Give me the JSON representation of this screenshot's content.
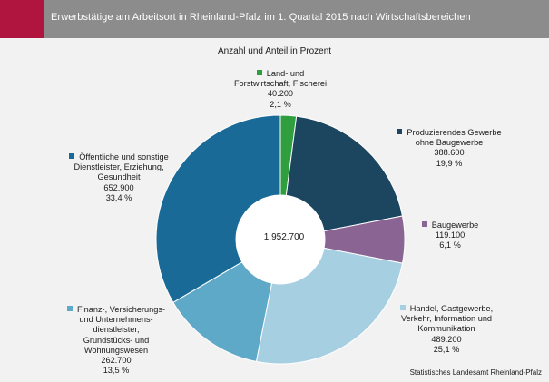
{
  "header": {
    "title": "Erwerbstätige am Arbeitsort in Rheinland-Pfalz im 1. Quartal 2015 nach Wirtschaftsbereichen"
  },
  "subtitle": "Anzahl und Anteil in Prozent",
  "total": "1.952.700",
  "source": "Statistisches Landesamt Rheinland-Pfalz",
  "colors": {
    "header": "#8c8c8c",
    "accent": "#b0153f",
    "background": "#f2f2f2"
  },
  "chart_data": {
    "type": "pie",
    "variant": "donut",
    "total": 1952700,
    "slices": [
      {
        "label_lines": [
          "Land- und",
          "Forstwirtschaft, Fischerei"
        ],
        "value": 40200,
        "value_text": "40.200",
        "percent": 2.1,
        "percent_text": "2,1 %",
        "color": "#2e9e3f"
      },
      {
        "label_lines": [
          "Produzierendes Gewerbe",
          "ohne Baugewerbe"
        ],
        "value": 388600,
        "value_text": "388.600",
        "percent": 19.9,
        "percent_text": "19,9 %",
        "color": "#1c4560"
      },
      {
        "label_lines": [
          "Baugewerbe"
        ],
        "value": 119100,
        "value_text": "119.100",
        "percent": 6.1,
        "percent_text": "6,1 %",
        "color": "#8a6493"
      },
      {
        "label_lines": [
          "Handel, Gastgewerbe,",
          "Verkehr, Information und",
          "Kommunikation"
        ],
        "value": 489200,
        "value_text": "489.200",
        "percent": 25.1,
        "percent_text": "25,1 %",
        "color": "#a6cfe2"
      },
      {
        "label_lines": [
          "Finanz-, Versicherungs-",
          "und Unternehmens-",
          "dienstleister,",
          "Grundstücks- und",
          "Wohnungswesen"
        ],
        "value": 262700,
        "value_text": "262.700",
        "percent": 13.5,
        "percent_text": "13,5 %",
        "color": "#5ea9c8"
      },
      {
        "label_lines": [
          "Öffentliche und sonstige",
          "Dienstleister, Erziehung,",
          "Gesundheit"
        ],
        "value": 652900,
        "value_text": "652.900",
        "percent": 33.4,
        "percent_text": "33,4 %",
        "color": "#1a6a98"
      }
    ]
  }
}
